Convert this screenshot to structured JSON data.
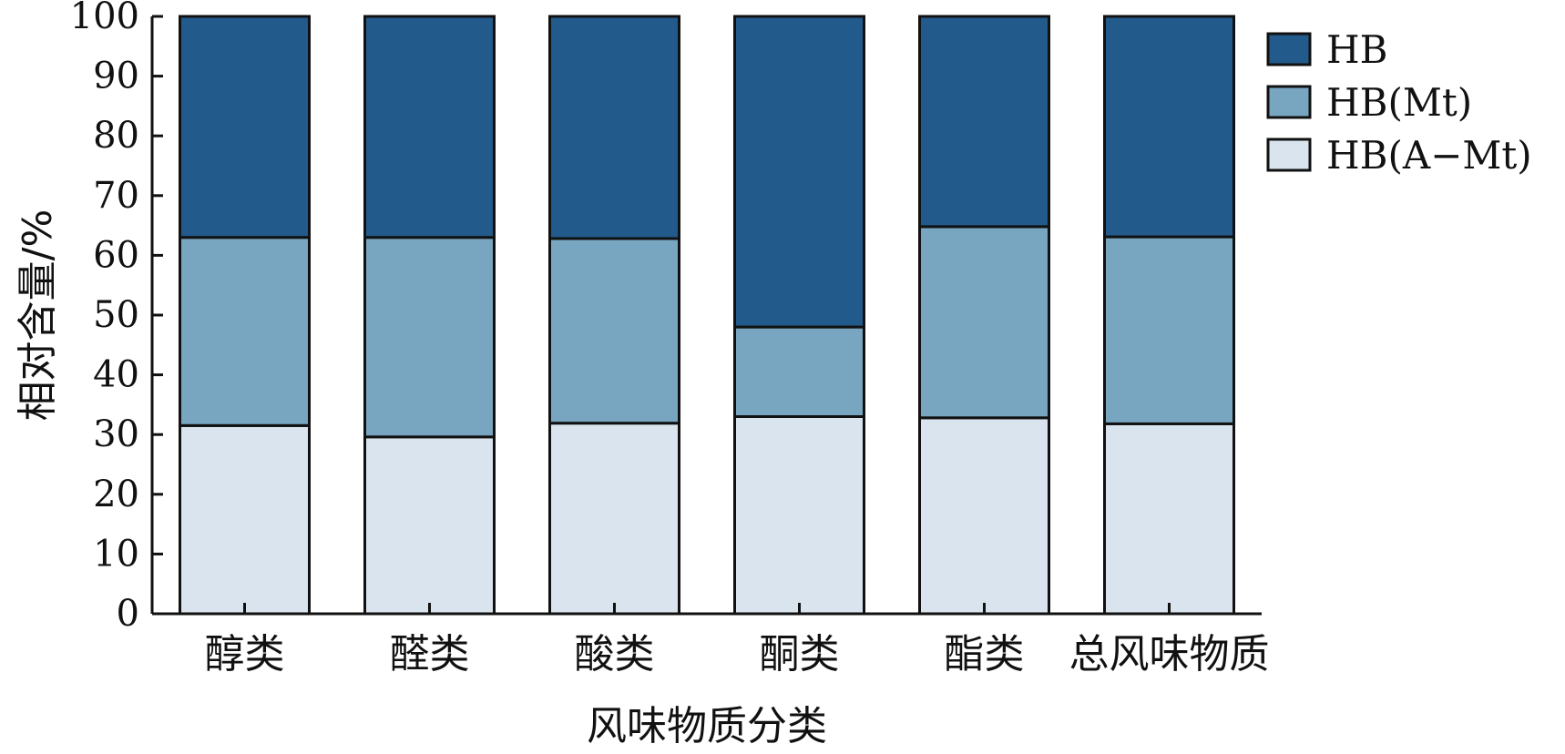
{
  "chart_data": {
    "type": "bar",
    "stacked": true,
    "percent_stacked": true,
    "categories": [
      "醇类",
      "醛类",
      "酸类",
      "酮类",
      "酯类",
      "总风味物质"
    ],
    "series": [
      {
        "name": "HB(A−Mt)",
        "color": "#d9e4ee",
        "values": [
          31.5,
          29.6,
          31.9,
          33.0,
          32.8,
          31.8
        ]
      },
      {
        "name": "HB(Mt)",
        "color": "#78a6c1",
        "values": [
          31.5,
          33.4,
          30.9,
          15.0,
          32.0,
          31.3
        ]
      },
      {
        "name": "HB",
        "color": "#235a8c",
        "values": [
          37.0,
          37.0,
          37.2,
          52.0,
          35.2,
          36.9
        ]
      }
    ],
    "legend_order": [
      "HB",
      "HB(Mt)",
      "HB(A−Mt)"
    ],
    "legend_position": "right",
    "xlabel": "风味物质分类",
    "ylabel": "相对含量/%",
    "ylim": [
      0,
      100
    ],
    "yticks": [
      0,
      10,
      20,
      30,
      40,
      50,
      60,
      70,
      80,
      90,
      100
    ],
    "grid": false
  }
}
